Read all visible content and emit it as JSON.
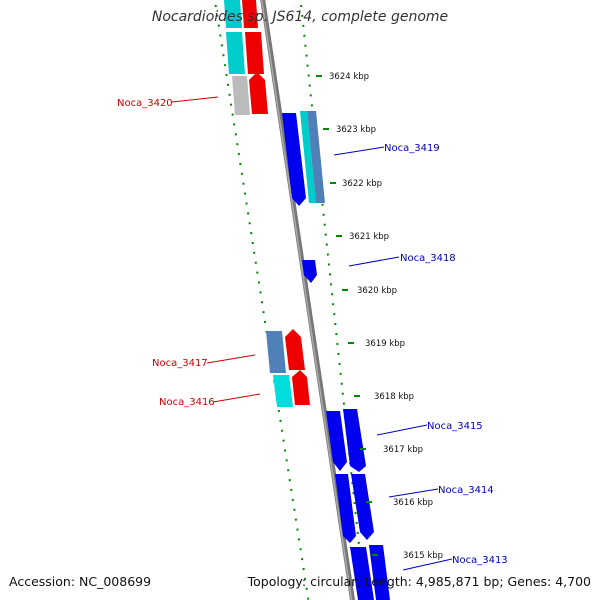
{
  "title": "Nocardioides sp. JS614, complete genome",
  "footer": {
    "accession": "Accession: NC_008699",
    "summary": "Topology: circular; Length: 4,985,871 bp; Genes: 4,700"
  },
  "colors": {
    "forward_label": "#cc0000",
    "reverse_label": "#0000bb",
    "dotted_ring": "#008800",
    "backbone": "#777777"
  },
  "ticks": [
    "3624 kbp",
    "3623 kbp",
    "3622 kbp",
    "3621 kbp",
    "3620 kbp",
    "3619 kbp",
    "3618 kbp",
    "3617 kbp",
    "3616 kbp",
    "3615 kbp"
  ],
  "gene_labels": [
    {
      "text": "Noca_3420",
      "strand": "forward"
    },
    {
      "text": "Noca_3419",
      "strand": "reverse"
    },
    {
      "text": "Noca_3418",
      "strand": "reverse"
    },
    {
      "text": "Noca_3417",
      "strand": "forward"
    },
    {
      "text": "Noca_3416",
      "strand": "forward"
    },
    {
      "text": "Noca_3415",
      "strand": "reverse"
    },
    {
      "text": "Noca_3414",
      "strand": "reverse"
    },
    {
      "text": "Noca_3413",
      "strand": "reverse"
    }
  ]
}
